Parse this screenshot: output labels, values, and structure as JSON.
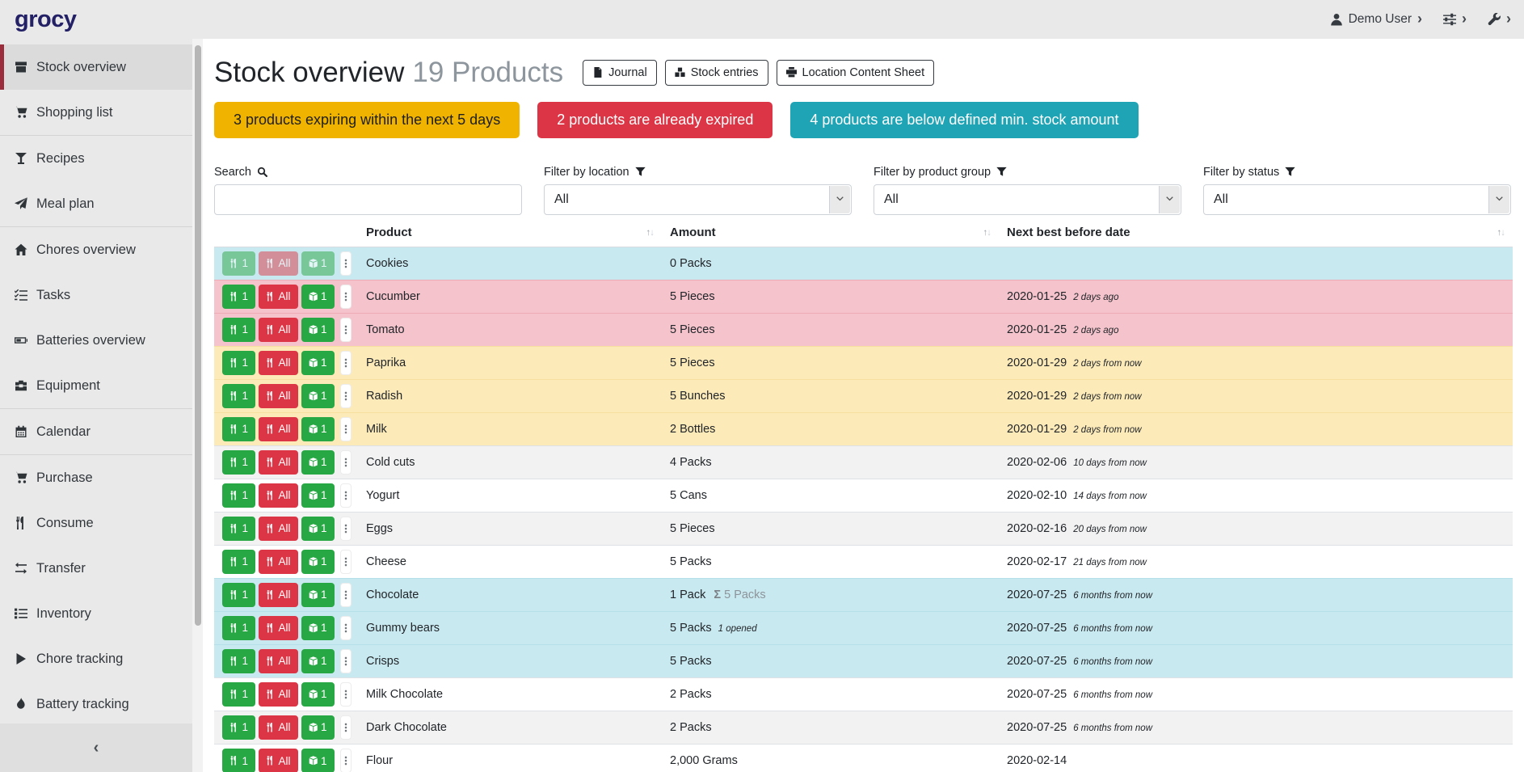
{
  "brand": {
    "logo_text": "grocy"
  },
  "navbar": {
    "user_label": "Demo User",
    "chevron": "›"
  },
  "sidebar": {
    "items": [
      {
        "label": "Stock overview",
        "icon": "box-icon",
        "active": true
      },
      {
        "label": "Shopping list",
        "icon": "shopping-cart-icon"
      },
      {
        "label": "Recipes",
        "icon": "glass-martini-icon",
        "divider_before": true
      },
      {
        "label": "Meal plan",
        "icon": "paper-plane-icon"
      },
      {
        "label": "Chores overview",
        "icon": "home-icon",
        "divider_before": true
      },
      {
        "label": "Tasks",
        "icon": "tasks-icon"
      },
      {
        "label": "Batteries overview",
        "icon": "battery-icon"
      },
      {
        "label": "Equipment",
        "icon": "toolbox-icon"
      },
      {
        "label": "Calendar",
        "icon": "calendar-icon",
        "divider_before": true
      },
      {
        "label": "Purchase",
        "icon": "shopping-cart-icon",
        "divider_before": true
      },
      {
        "label": "Consume",
        "icon": "utensils-icon"
      },
      {
        "label": "Transfer",
        "icon": "exchange-icon"
      },
      {
        "label": "Inventory",
        "icon": "list-icon"
      },
      {
        "label": "Chore tracking",
        "icon": "play-icon"
      },
      {
        "label": "Battery tracking",
        "icon": "flame-icon"
      }
    ],
    "collapse_icon": "‹"
  },
  "header": {
    "title": "Stock overview",
    "count": "19 Products",
    "buttons": [
      {
        "label": "Journal",
        "icon": "file-icon",
        "name": "journal-button"
      },
      {
        "label": "Stock entries",
        "icon": "boxes-icon",
        "name": "stock-entries-button"
      },
      {
        "label": "Location Content Sheet",
        "icon": "print-icon",
        "name": "location-content-sheet-button"
      }
    ]
  },
  "alerts": [
    {
      "text": "3 products expiring within the next 5 days",
      "type": "warning",
      "color": "#f0b400"
    },
    {
      "text": "2 products are already expired",
      "type": "danger",
      "color": "#dc3545"
    },
    {
      "text": "4 products are below defined min. stock amount",
      "type": "info",
      "color": "#1fa4b5"
    }
  ],
  "filters": {
    "search": {
      "label": "Search",
      "icon": "search-icon",
      "value": "",
      "placeholder": ""
    },
    "location": {
      "label": "Filter by location",
      "icon": "filter-icon",
      "value": "All"
    },
    "product_group": {
      "label": "Filter by product group",
      "icon": "filter-icon",
      "value": "All"
    },
    "status": {
      "label": "Filter by status",
      "icon": "filter-icon",
      "value": "All"
    }
  },
  "table": {
    "columns": [
      "Product",
      "Amount",
      "Next best before date"
    ],
    "row_actions": {
      "consume_one": "1",
      "consume_all": "All",
      "open_one": "1"
    },
    "rows": [
      {
        "product": "Cookies",
        "amount": "0 Packs",
        "date": "",
        "date_note": "",
        "status": "info",
        "buttons_disabled": true
      },
      {
        "product": "Cucumber",
        "amount": "5 Pieces",
        "date": "2020-01-25",
        "date_note": "2 days ago",
        "status": "danger"
      },
      {
        "product": "Tomato",
        "amount": "5 Pieces",
        "date": "2020-01-25",
        "date_note": "2 days ago",
        "status": "danger"
      },
      {
        "product": "Paprika",
        "amount": "5 Pieces",
        "date": "2020-01-29",
        "date_note": "2 days from now",
        "status": "warning"
      },
      {
        "product": "Radish",
        "amount": "5 Bunches",
        "date": "2020-01-29",
        "date_note": "2 days from now",
        "status": "warning"
      },
      {
        "product": "Milk",
        "amount": "2 Bottles",
        "date": "2020-01-29",
        "date_note": "2 days from now",
        "status": "warning"
      },
      {
        "product": "Cold cuts",
        "amount": "4 Packs",
        "date": "2020-02-06",
        "date_note": "10 days from now"
      },
      {
        "product": "Yogurt",
        "amount": "5 Cans",
        "date": "2020-02-10",
        "date_note": "14 days from now"
      },
      {
        "product": "Eggs",
        "amount": "5 Pieces",
        "date": "2020-02-16",
        "date_note": "20 days from now"
      },
      {
        "product": "Cheese",
        "amount": "5 Packs",
        "date": "2020-02-17",
        "date_note": "21 days from now"
      },
      {
        "product": "Chocolate",
        "amount": "1 Pack",
        "amount_sum": "5 Packs",
        "date": "2020-07-25",
        "date_note": "6 months from now",
        "status": "info"
      },
      {
        "product": "Gummy bears",
        "amount": "5 Packs",
        "amount_note": "1 opened",
        "date": "2020-07-25",
        "date_note": "6 months from now",
        "status": "info"
      },
      {
        "product": "Crisps",
        "amount": "5 Packs",
        "date": "2020-07-25",
        "date_note": "6 months from now",
        "status": "info"
      },
      {
        "product": "Milk Chocolate",
        "amount": "2 Packs",
        "date": "2020-07-25",
        "date_note": "6 months from now"
      },
      {
        "product": "Dark Chocolate",
        "amount": "2 Packs",
        "date": "2020-07-25",
        "date_note": "6 months from now"
      },
      {
        "product": "Flour",
        "amount": "2,000 Grams",
        "date": "2020-02-14",
        "date_note": "",
        "partial": true
      }
    ]
  },
  "colors": {
    "success": "#28a745",
    "danger": "#dc3545",
    "warning": "#f0b400",
    "info": "#1fa4b5",
    "row_info": "#c9e9f0",
    "row_danger": "#f4c3cb",
    "row_warning": "#fdeab9",
    "brand": "#232066",
    "active_item_border": "#9b2c3b"
  }
}
